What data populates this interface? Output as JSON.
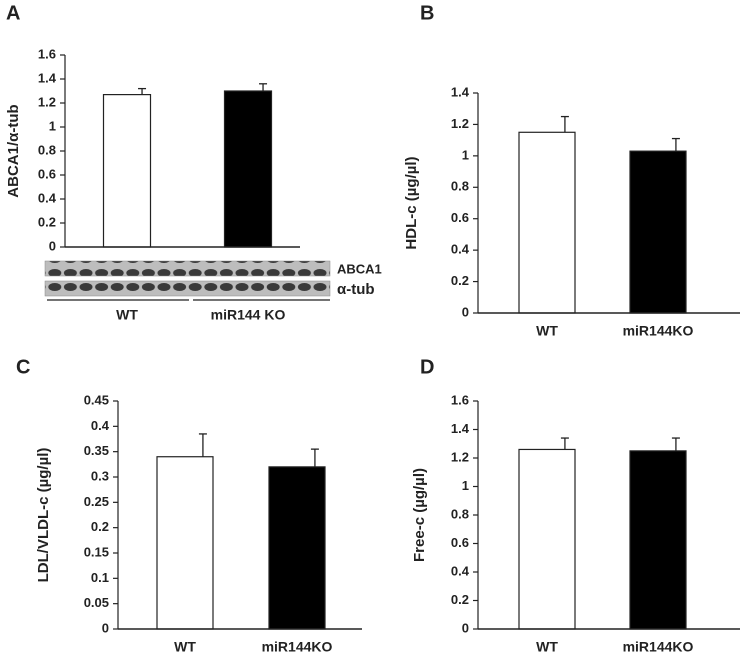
{
  "chart_data": [
    {
      "type": "bar",
      "panel_label": "A",
      "ylabel": "ABCA1/α-tub",
      "categories": [
        "WT",
        "miR144 KO"
      ],
      "values": [
        1.27,
        1.3
      ],
      "errors": [
        0.05,
        0.06
      ],
      "colors": [
        "#ffffff",
        "#000000"
      ],
      "ylim": [
        0,
        1.6
      ],
      "yticks": [
        0,
        0.2,
        0.4,
        0.6,
        0.8,
        1,
        1.2,
        1.4,
        1.6
      ],
      "blot_labels": [
        "ABCA1",
        "α-tub"
      ]
    },
    {
      "type": "bar",
      "panel_label": "B",
      "ylabel": "HDL-c (µg/µl)",
      "categories": [
        "WT",
        "miR144KO"
      ],
      "values": [
        1.15,
        1.03
      ],
      "errors": [
        0.1,
        0.08
      ],
      "colors": [
        "#ffffff",
        "#000000"
      ],
      "ylim": [
        0,
        1.4
      ],
      "yticks": [
        0,
        0.2,
        0.4,
        0.6,
        0.8,
        1,
        1.2,
        1.4
      ]
    },
    {
      "type": "bar",
      "panel_label": "C",
      "ylabel": "LDL/VLDL-c (µg/µl)",
      "categories": [
        "WT",
        "miR144KO"
      ],
      "values": [
        0.34,
        0.32
      ],
      "errors": [
        0.045,
        0.035
      ],
      "colors": [
        "#ffffff",
        "#000000"
      ],
      "ylim": [
        0,
        0.45
      ],
      "yticks": [
        0,
        0.05,
        0.1,
        0.15,
        0.2,
        0.25,
        0.3,
        0.35,
        0.4,
        0.45
      ]
    },
    {
      "type": "bar",
      "panel_label": "D",
      "ylabel": "Free-c (µg/µl)",
      "categories": [
        "WT",
        "miR144KO"
      ],
      "values": [
        1.26,
        1.25
      ],
      "errors": [
        0.08,
        0.09
      ],
      "colors": [
        "#ffffff",
        "#000000"
      ],
      "ylim": [
        0,
        1.6
      ],
      "yticks": [
        0,
        0.2,
        0.4,
        0.6,
        0.8,
        1,
        1.2,
        1.4,
        1.6
      ]
    }
  ]
}
